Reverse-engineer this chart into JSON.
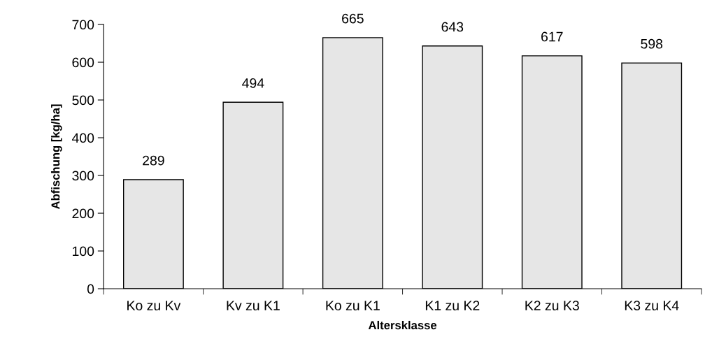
{
  "chart_data": {
    "type": "bar",
    "xlabel": "Altersklasse",
    "ylabel": "Abfischung [kg/ha]",
    "categories": [
      "Ko zu Kv",
      "Kv zu K1",
      "Ko zu K1",
      "K1 zu K2",
      "K2 zu K3",
      "K3 zu K4"
    ],
    "values": [
      289,
      494,
      665,
      643,
      617,
      598
    ],
    "color": "#e6e6e6",
    "ylim": [
      0,
      700
    ],
    "yticks": [
      0,
      100,
      200,
      300,
      400,
      500,
      600,
      700
    ],
    "grid": false,
    "data_labels": true
  }
}
